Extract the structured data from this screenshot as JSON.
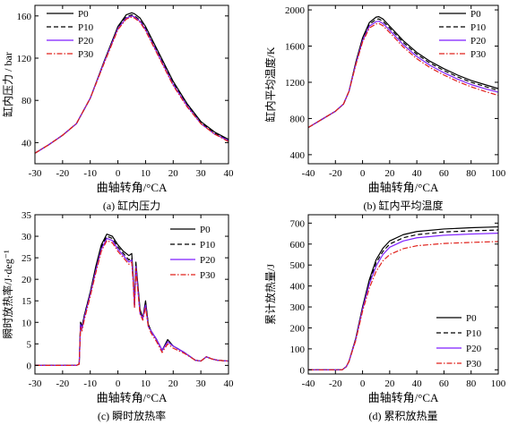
{
  "chart_data": [
    {
      "type": "line",
      "title": "(a) 缸内压力",
      "xlabel": "曲轴转角/°CA",
      "ylabel": "缸内压力 / bar",
      "xlim": [
        -30,
        40
      ],
      "ylim": [
        20,
        170
      ],
      "xticks": [
        -30,
        -20,
        -10,
        0,
        10,
        20,
        30,
        40
      ],
      "yticks": [
        40,
        80,
        120,
        160
      ],
      "legend_position": "top-left",
      "series": [
        {
          "name": "P0",
          "x": [
            -30,
            -25,
            -20,
            -15,
            -10,
            -5,
            0,
            3,
            5,
            6,
            8,
            10,
            15,
            20,
            25,
            30,
            35,
            40
          ],
          "y": [
            30,
            38,
            47,
            58,
            82,
            117,
            150,
            161,
            163,
            162,
            158,
            150,
            124,
            98,
            77,
            60,
            50,
            43
          ]
        },
        {
          "name": "P10",
          "x": [
            -30,
            -25,
            -20,
            -15,
            -10,
            -5,
            0,
            3,
            5,
            6,
            8,
            10,
            15,
            20,
            25,
            30,
            35,
            40
          ],
          "y": [
            30,
            38,
            47,
            58,
            82,
            116,
            149,
            159,
            161,
            160,
            156,
            148,
            122,
            96,
            76,
            59,
            49,
            42
          ]
        },
        {
          "name": "P20",
          "x": [
            -30,
            -25,
            -20,
            -15,
            -10,
            -5,
            0,
            3,
            5,
            6,
            8,
            10,
            15,
            20,
            25,
            30,
            35,
            40
          ],
          "y": [
            30,
            38,
            47,
            58,
            82,
            116,
            148,
            158,
            160,
            159,
            155,
            147,
            121,
            95,
            75,
            58,
            48,
            42
          ]
        },
        {
          "name": "P30",
          "x": [
            -30,
            -25,
            -20,
            -15,
            -10,
            -5,
            0,
            3,
            5,
            6,
            8,
            10,
            15,
            20,
            25,
            30,
            35,
            40
          ],
          "y": [
            30,
            38,
            47,
            58,
            82,
            115,
            147,
            157,
            159,
            158,
            154,
            146,
            120,
            94,
            74,
            58,
            48,
            41
          ]
        }
      ]
    },
    {
      "type": "line",
      "title": "(b) 缸内平均温度",
      "xlabel": "曲轴转角/°CA",
      "ylabel": "缸内平均温度/K",
      "xlim": [
        -40,
        100
      ],
      "ylim": [
        300,
        2050
      ],
      "xticks": [
        -40,
        -20,
        0,
        20,
        40,
        60,
        80,
        100
      ],
      "yticks": [
        400,
        800,
        1200,
        1600,
        2000
      ],
      "legend_position": "top-right",
      "series": [
        {
          "name": "P0",
          "x": [
            -40,
            -30,
            -20,
            -14,
            -10,
            -5,
            0,
            5,
            10,
            12,
            15,
            20,
            30,
            40,
            50,
            60,
            70,
            80,
            90,
            100
          ],
          "y": [
            700,
            790,
            880,
            960,
            1100,
            1420,
            1690,
            1860,
            1920,
            1925,
            1900,
            1820,
            1660,
            1530,
            1430,
            1350,
            1280,
            1220,
            1175,
            1130
          ]
        },
        {
          "name": "P10",
          "x": [
            -40,
            -30,
            -20,
            -14,
            -10,
            -5,
            0,
            5,
            10,
            12,
            15,
            20,
            30,
            40,
            50,
            60,
            70,
            80,
            90,
            100
          ],
          "y": [
            700,
            790,
            880,
            960,
            1100,
            1410,
            1675,
            1840,
            1895,
            1900,
            1875,
            1800,
            1640,
            1510,
            1410,
            1330,
            1260,
            1200,
            1155,
            1110
          ]
        },
        {
          "name": "P20",
          "x": [
            -40,
            -30,
            -20,
            -14,
            -10,
            -5,
            0,
            5,
            10,
            12,
            15,
            20,
            30,
            40,
            50,
            60,
            70,
            80,
            90,
            100
          ],
          "y": [
            700,
            790,
            880,
            960,
            1100,
            1400,
            1660,
            1820,
            1870,
            1875,
            1850,
            1775,
            1615,
            1485,
            1385,
            1305,
            1235,
            1175,
            1130,
            1090
          ]
        },
        {
          "name": "P30",
          "x": [
            -40,
            -30,
            -20,
            -14,
            -10,
            -5,
            0,
            5,
            10,
            12,
            15,
            20,
            30,
            40,
            50,
            60,
            70,
            80,
            90,
            100
          ],
          "y": [
            700,
            790,
            880,
            960,
            1100,
            1390,
            1645,
            1800,
            1845,
            1850,
            1825,
            1750,
            1590,
            1460,
            1360,
            1280,
            1210,
            1150,
            1100,
            1055
          ]
        }
      ]
    },
    {
      "type": "line",
      "title": "(c) 瞬时放热率",
      "xlabel": "曲轴转角/°CA",
      "ylabel": "瞬时放热率/J·deg⁻¹",
      "xlim": [
        -30,
        40
      ],
      "ylim": [
        -2,
        35
      ],
      "xticks": [
        -30,
        -20,
        -10,
        0,
        10,
        20,
        30,
        40
      ],
      "yticks": [
        0,
        5,
        10,
        15,
        20,
        25,
        30,
        35
      ],
      "legend_position": "top-right",
      "series": [
        {
          "name": "P0",
          "x": [
            -30,
            -15,
            -14,
            -13.5,
            -13,
            -12,
            -10,
            -8,
            -6,
            -4,
            -2,
            0,
            2,
            4,
            5,
            5.5,
            6,
            6.5,
            8,
            9,
            10,
            11,
            12,
            14,
            16,
            18,
            20,
            24,
            28,
            30,
            32,
            34,
            36,
            40
          ],
          "y": [
            0,
            0,
            0.3,
            10,
            9,
            12,
            17,
            23,
            28,
            30.5,
            30,
            28,
            26.5,
            25.5,
            26,
            21,
            14,
            24,
            13,
            11,
            15,
            9.5,
            8,
            6,
            3.5,
            6,
            4.5,
            3,
            1.2,
            1,
            2,
            1.5,
            1.2,
            1
          ]
        },
        {
          "name": "P10",
          "x": [
            -30,
            -15,
            -14,
            -13.5,
            -13,
            -12,
            -10,
            -8,
            -6,
            -4,
            -2,
            0,
            2,
            4,
            5,
            5.5,
            6,
            6.5,
            8,
            9,
            10,
            11,
            12,
            14,
            16,
            18,
            20,
            24,
            28,
            30,
            32,
            34,
            36,
            40
          ],
          "y": [
            0,
            0,
            0.3,
            10,
            9,
            12,
            17,
            22.5,
            27.5,
            30,
            29.5,
            27.5,
            26,
            24.5,
            25,
            20.5,
            14,
            23.5,
            12.5,
            11,
            14.5,
            9.5,
            8,
            6,
            3.5,
            5.5,
            4.5,
            3,
            1.2,
            1,
            2,
            1.5,
            1.2,
            1
          ]
        },
        {
          "name": "P20",
          "x": [
            -30,
            -15,
            -14,
            -13.5,
            -13,
            -12,
            -10,
            -8,
            -6,
            -4,
            -2,
            0,
            2,
            4,
            5,
            5.5,
            6,
            6.5,
            8,
            9,
            10,
            11,
            12,
            14,
            16,
            18,
            20,
            24,
            28,
            30,
            32,
            34,
            36,
            40
          ],
          "y": [
            0,
            0,
            0.3,
            9.5,
            8.5,
            11.5,
            16.5,
            22,
            27,
            29.5,
            29,
            27,
            25.5,
            24,
            24.5,
            20,
            13.5,
            23,
            12,
            11,
            14,
            9,
            8,
            6,
            3.5,
            5.5,
            4.5,
            3,
            1.2,
            1,
            2,
            1.5,
            1.2,
            1
          ]
        },
        {
          "name": "P30",
          "x": [
            -30,
            -15,
            -14,
            -13.5,
            -13,
            -12,
            -10,
            -8,
            -6,
            -4,
            -2,
            0,
            2,
            4,
            5,
            5.5,
            6,
            6.5,
            8,
            9,
            10,
            11,
            12,
            14,
            16,
            18,
            20,
            24,
            28,
            30,
            32,
            34,
            36,
            40
          ],
          "y": [
            0,
            0,
            0.3,
            9,
            8,
            11,
            16,
            21.5,
            26.5,
            29,
            28.5,
            26.5,
            25,
            23.5,
            24,
            19.5,
            13.5,
            22.5,
            12,
            10.5,
            13.5,
            9,
            7.5,
            5.5,
            3,
            5,
            4,
            2.8,
            1.2,
            1,
            2,
            1.5,
            1.2,
            1
          ]
        }
      ]
    },
    {
      "type": "line",
      "title": "(d) 累积放热量",
      "xlabel": "曲轴转角/°CA",
      "ylabel": "累计放热量/J",
      "xlim": [
        -40,
        100
      ],
      "ylim": [
        -20,
        740
      ],
      "xticks": [
        -40,
        -20,
        0,
        20,
        40,
        60,
        80,
        100
      ],
      "yticks": [
        0,
        100,
        200,
        300,
        400,
        500,
        600,
        700
      ],
      "legend_position": "bottom-right",
      "series": [
        {
          "name": "P0",
          "x": [
            -40,
            -20,
            -15,
            -12,
            -10,
            -5,
            0,
            5,
            10,
            15,
            20,
            30,
            40,
            60,
            80,
            100
          ],
          "y": [
            0,
            0,
            0,
            15,
            40,
            150,
            300,
            430,
            525,
            580,
            615,
            645,
            660,
            672,
            678,
            682
          ]
        },
        {
          "name": "P10",
          "x": [
            -40,
            -20,
            -15,
            -12,
            -10,
            -5,
            0,
            5,
            10,
            15,
            20,
            30,
            40,
            60,
            80,
            100
          ],
          "y": [
            0,
            0,
            0,
            15,
            40,
            148,
            295,
            420,
            510,
            565,
            600,
            630,
            645,
            658,
            663,
            667
          ]
        },
        {
          "name": "P20",
          "x": [
            -40,
            -20,
            -15,
            -12,
            -10,
            -5,
            0,
            5,
            10,
            15,
            20,
            30,
            40,
            60,
            80,
            100
          ],
          "y": [
            0,
            0,
            0,
            15,
            40,
            145,
            290,
            410,
            495,
            550,
            585,
            615,
            630,
            642,
            648,
            652
          ]
        },
        {
          "name": "P30",
          "x": [
            -40,
            -20,
            -15,
            -12,
            -10,
            -5,
            0,
            5,
            10,
            15,
            20,
            30,
            40,
            60,
            80,
            100
          ],
          "y": [
            0,
            0,
            0,
            15,
            40,
            140,
            280,
            390,
            470,
            520,
            550,
            578,
            592,
            603,
            608,
            612
          ]
        }
      ]
    }
  ],
  "styles": {
    "series_colors": [
      "#000000",
      "#000000",
      "#7f1fff",
      "#e0201a"
    ],
    "series_dash": [
      "solid",
      "dashed",
      "solid",
      "dashdot"
    ]
  }
}
